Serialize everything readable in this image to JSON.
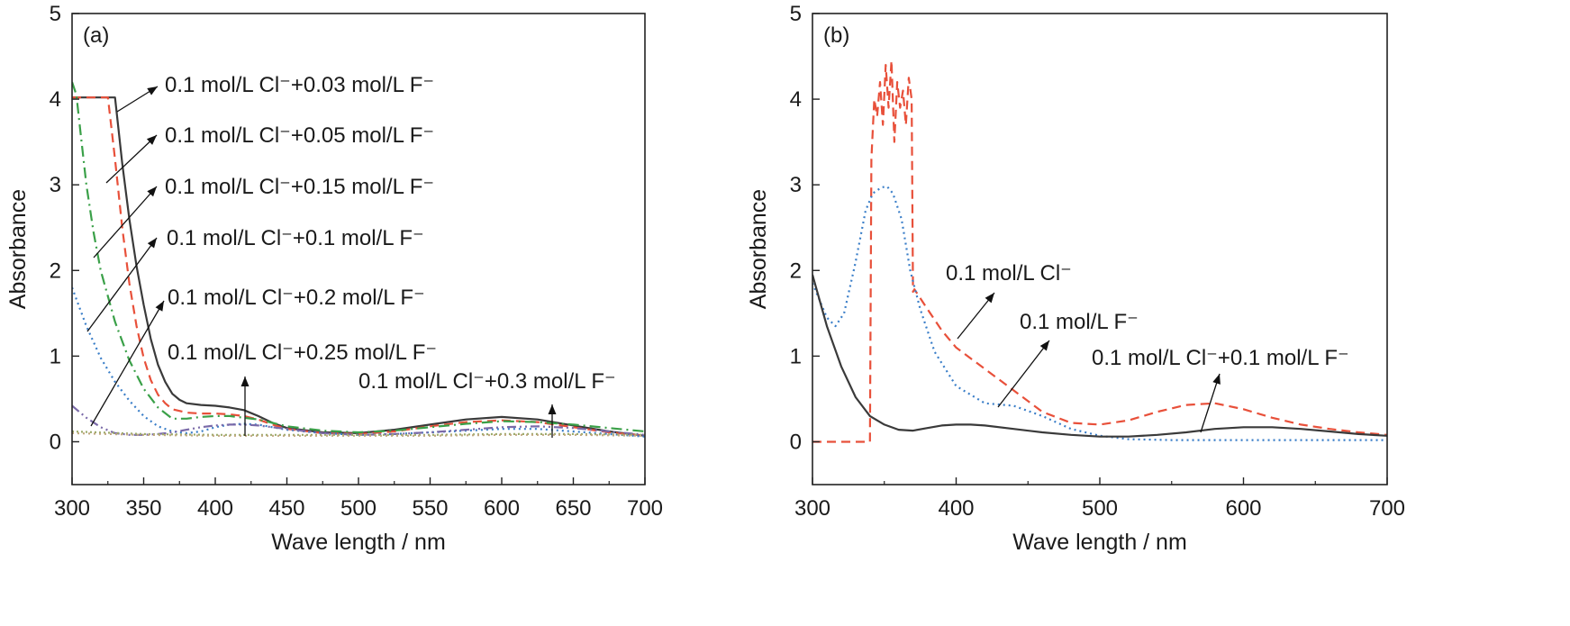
{
  "chart_data": [
    {
      "type": "line",
      "panel_label": "(a)",
      "xlabel": "Wave length / nm",
      "ylabel": "Absorbance",
      "xlim": [
        300,
        700
      ],
      "ylim": [
        -0.5,
        5
      ],
      "xticks": [
        "300",
        "350",
        "400",
        "450",
        "500",
        "550",
        "600",
        "650",
        "700"
      ],
      "yticks": [
        "0",
        "1",
        "2",
        "3",
        "4",
        "5"
      ],
      "grid": false,
      "series": [
        {
          "name": "0.1 mol/L Cl⁻+0.03 mol/L F⁻",
          "color": "#3a3a3a",
          "dash": "solid",
          "x": [
            300,
            330,
            335,
            340,
            345,
            350,
            355,
            360,
            365,
            370,
            375,
            380,
            390,
            400,
            410,
            420,
            430,
            440,
            450,
            475,
            500,
            525,
            550,
            575,
            600,
            625,
            650,
            675,
            700
          ],
          "y": [
            4.02,
            4.02,
            3.25,
            2.6,
            2.05,
            1.6,
            1.2,
            0.9,
            0.7,
            0.56,
            0.49,
            0.45,
            0.43,
            0.42,
            0.4,
            0.37,
            0.3,
            0.22,
            0.16,
            0.11,
            0.1,
            0.14,
            0.2,
            0.26,
            0.29,
            0.26,
            0.19,
            0.12,
            0.07
          ]
        },
        {
          "name": "0.1 mol/L Cl⁻+0.05 mol/L F⁻",
          "color": "#e8503a",
          "dash": "dash",
          "x": [
            300,
            325,
            330,
            335,
            340,
            345,
            350,
            355,
            360,
            365,
            370,
            380,
            390,
            400,
            410,
            420,
            430,
            440,
            450,
            475,
            500,
            525,
            550,
            575,
            600,
            625,
            650,
            675,
            700
          ],
          "y": [
            4.02,
            4.02,
            3.3,
            2.5,
            1.85,
            1.35,
            0.98,
            0.72,
            0.55,
            0.45,
            0.38,
            0.34,
            0.33,
            0.33,
            0.32,
            0.3,
            0.26,
            0.2,
            0.15,
            0.1,
            0.09,
            0.12,
            0.18,
            0.23,
            0.25,
            0.23,
            0.17,
            0.11,
            0.07
          ]
        },
        {
          "name": "0.1 mol/L Cl⁻+0.15 mol/L F⁻",
          "color": "#3aa048",
          "dash": "dashdot",
          "x": [
            300,
            303,
            306,
            310,
            315,
            320,
            330,
            340,
            350,
            360,
            370,
            380,
            390,
            400,
            410,
            420,
            430,
            440,
            450,
            475,
            500,
            525,
            550,
            575,
            600,
            625,
            650,
            675,
            700
          ],
          "y": [
            4.2,
            4.05,
            3.6,
            3.0,
            2.45,
            2.0,
            1.4,
            0.95,
            0.62,
            0.4,
            0.27,
            0.27,
            0.29,
            0.3,
            0.3,
            0.28,
            0.26,
            0.22,
            0.18,
            0.13,
            0.11,
            0.13,
            0.17,
            0.21,
            0.24,
            0.23,
            0.2,
            0.16,
            0.12
          ]
        },
        {
          "name": "0.1 mol/L Cl⁻+0.1 mol/L F⁻",
          "color": "#3a7ec8",
          "dash": "dot",
          "x": [
            300,
            310,
            320,
            330,
            340,
            350,
            360,
            370,
            380,
            390,
            400,
            410,
            420,
            430,
            440,
            450,
            475,
            500,
            525,
            550,
            575,
            600,
            625,
            650,
            675,
            700
          ],
          "y": [
            1.8,
            1.35,
            0.98,
            0.7,
            0.48,
            0.3,
            0.18,
            0.12,
            0.1,
            0.12,
            0.17,
            0.2,
            0.21,
            0.2,
            0.17,
            0.14,
            0.1,
            0.08,
            0.09,
            0.11,
            0.13,
            0.15,
            0.15,
            0.12,
            0.09,
            0.06
          ]
        },
        {
          "name": "0.1 mol/L Cl⁻+0.2 mol/L F⁻",
          "color": "#7a6aa8",
          "dash": "dashdotdot",
          "x": [
            300,
            310,
            320,
            330,
            340,
            350,
            360,
            370,
            380,
            390,
            400,
            410,
            420,
            430,
            440,
            450,
            475,
            500,
            525,
            550,
            575,
            600,
            625,
            650,
            675,
            700
          ],
          "y": [
            0.42,
            0.28,
            0.17,
            0.1,
            0.08,
            0.08,
            0.09,
            0.11,
            0.14,
            0.17,
            0.19,
            0.2,
            0.2,
            0.19,
            0.17,
            0.15,
            0.1,
            0.08,
            0.09,
            0.11,
            0.14,
            0.17,
            0.18,
            0.16,
            0.12,
            0.08
          ]
        },
        {
          "name": "0.1 mol/L Cl⁻+0.25 mol/L F⁻",
          "color": "#9aaa68",
          "dash": "shortdot",
          "x": [
            300,
            350,
            400,
            450,
            500,
            550,
            600,
            650,
            700
          ],
          "y": [
            0.12,
            0.09,
            0.08,
            0.08,
            0.08,
            0.08,
            0.09,
            0.09,
            0.08
          ]
        },
        {
          "name": "0.1 mol/L Cl⁻+0.3 mol/L F⁻",
          "color": "#c0a880",
          "dash": "dot",
          "x": [
            300,
            350,
            400,
            450,
            500,
            550,
            600,
            650,
            700
          ],
          "y": [
            0.1,
            0.08,
            0.07,
            0.07,
            0.07,
            0.07,
            0.08,
            0.08,
            0.07
          ]
        }
      ],
      "annotations": [
        {
          "text": "0.1 mol/L Cl⁻+0.03 mol/L F⁻",
          "series": 0
        },
        {
          "text": "0.1 mol/L Cl⁻+0.05 mol/L F⁻",
          "series": 1
        },
        {
          "text": "0.1 mol/L Cl⁻+0.15 mol/L F⁻",
          "series": 2
        },
        {
          "text": "0.1 mol/L Cl⁻+0.1 mol/L F⁻",
          "series": 3
        },
        {
          "text": "0.1 mol/L Cl⁻+0.2 mol/L F⁻",
          "series": 4
        },
        {
          "text": "0.1 mol/L Cl⁻+0.25 mol/L F⁻",
          "series": 5
        },
        {
          "text": "0.1 mol/L Cl⁻+0.3 mol/L F⁻",
          "series": 6
        }
      ]
    },
    {
      "type": "line",
      "panel_label": "(b)",
      "xlabel": "Wave length / nm",
      "ylabel": "Absorbance",
      "xlim": [
        300,
        700
      ],
      "ylim": [
        -0.5,
        5
      ],
      "xticks": [
        "300",
        "400",
        "500",
        "600",
        "700"
      ],
      "yticks": [
        "0",
        "1",
        "2",
        "3",
        "4",
        "5"
      ],
      "grid": false,
      "series": [
        {
          "name": "0.1 mol/L Cl⁻",
          "color": "#e8503a",
          "dash": "dash",
          "x": [
            300,
            339,
            340,
            341,
            343,
            345,
            347,
            349,
            351,
            353,
            355,
            357,
            359,
            361,
            363,
            365,
            367,
            369,
            370,
            371,
            380,
            390,
            400,
            420,
            440,
            460,
            480,
            500,
            520,
            540,
            560,
            580,
            600,
            620,
            640,
            660,
            680,
            700
          ],
          "y": [
            0,
            0,
            0,
            3.3,
            4.0,
            3.8,
            4.2,
            3.7,
            4.4,
            3.9,
            4.45,
            3.5,
            4.2,
            3.9,
            4.1,
            3.7,
            4.25,
            4.0,
            1.75,
            1.78,
            1.55,
            1.3,
            1.1,
            0.85,
            0.6,
            0.35,
            0.22,
            0.2,
            0.25,
            0.35,
            0.43,
            0.45,
            0.38,
            0.28,
            0.2,
            0.15,
            0.11,
            0.08
          ]
        },
        {
          "name": "0.1 mol/L F⁻",
          "color": "#3a7ec8",
          "dash": "dot",
          "x": [
            300,
            310,
            316,
            322,
            330,
            337,
            342,
            348,
            352,
            356,
            362,
            368,
            375,
            385,
            400,
            420,
            440,
            460,
            480,
            500,
            520,
            550,
            600,
            650,
            700
          ],
          "y": [
            1.85,
            1.45,
            1.35,
            1.5,
            2.1,
            2.7,
            2.9,
            2.97,
            2.98,
            2.9,
            2.6,
            2.0,
            1.55,
            1.05,
            0.65,
            0.45,
            0.42,
            0.3,
            0.15,
            0.07,
            0.03,
            0.02,
            0.02,
            0.02,
            0.02
          ]
        },
        {
          "name": "0.1 mol/L Cl⁻+0.1 mol/L F⁻",
          "color": "#3a3a3a",
          "dash": "solid",
          "x": [
            300,
            310,
            320,
            330,
            340,
            350,
            360,
            370,
            380,
            390,
            400,
            410,
            420,
            440,
            460,
            480,
            500,
            520,
            540,
            560,
            580,
            600,
            620,
            640,
            660,
            680,
            700
          ],
          "y": [
            1.95,
            1.35,
            0.88,
            0.52,
            0.3,
            0.2,
            0.14,
            0.13,
            0.16,
            0.19,
            0.2,
            0.2,
            0.19,
            0.15,
            0.11,
            0.08,
            0.06,
            0.06,
            0.08,
            0.11,
            0.15,
            0.17,
            0.17,
            0.15,
            0.12,
            0.09,
            0.07
          ]
        }
      ],
      "annotations": [
        {
          "text": "0.1 mol/L Cl⁻",
          "series": 0
        },
        {
          "text": "0.1 mol/L F⁻",
          "series": 1
        },
        {
          "text": "0.1 mol/L Cl⁻+0.1 mol/L F⁻",
          "series": 2
        }
      ]
    }
  ]
}
